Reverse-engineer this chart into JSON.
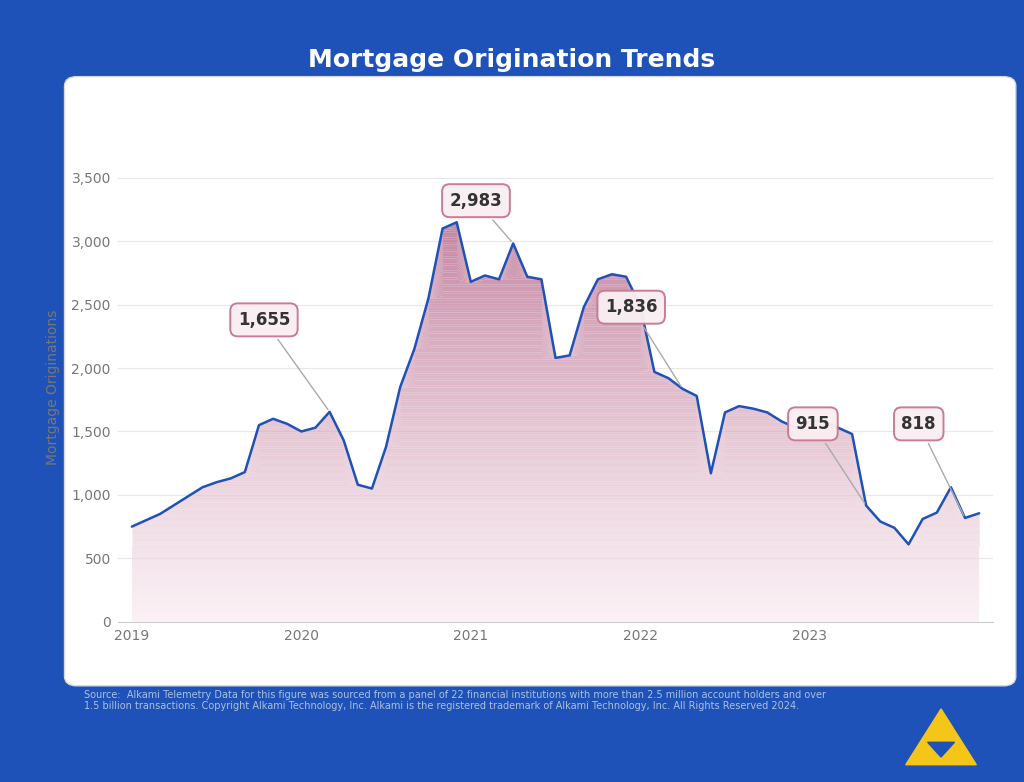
{
  "title": "Mortgage Origination Trends",
  "ylabel": "Mortgage Originations",
  "bg_color": "#1e52b8",
  "panel_facecolor": "#ffffff",
  "panel_edgecolor": "#d8d8d8",
  "line_color": "#1e52b8",
  "ann_face": "#f9eef2",
  "ann_edge": "#c87890",
  "ann_text": "#333333",
  "grid_color": "#e8e8e8",
  "tick_color": "#777777",
  "source_text": "Source:  Alkami Telemetry Data for this figure was sourced from a panel of 22 financial institutions with more than 2.5 million account holders and over\n1.5 billion transactions. Copyright Alkami Technology, Inc. Alkami is the registered trademark of Alkami Technology, Inc. All Rights Reserved 2024.",
  "title_color": "#ffffff",
  "source_color": "#aac0dd",
  "yticks": [
    0,
    500,
    1000,
    1500,
    2000,
    2500,
    3000,
    3500
  ],
  "ylim": [
    0,
    3700
  ],
  "xlim": [
    -1,
    61
  ],
  "year_ticks": [
    0,
    12,
    24,
    36,
    48
  ],
  "year_labels": [
    "2019",
    "2020",
    "2021",
    "2022",
    "2023"
  ],
  "annotations": [
    {
      "label": "1,655",
      "xi": 14,
      "yv": 1655,
      "bx": 7.5,
      "by": 2380
    },
    {
      "label": "2,983",
      "xi": 27,
      "yv": 2983,
      "bx": 22.5,
      "by": 3320
    },
    {
      "label": "1,836",
      "xi": 39,
      "yv": 1836,
      "bx": 33.5,
      "by": 2480
    },
    {
      "label": "915",
      "xi": 52,
      "yv": 915,
      "bx": 47.0,
      "by": 1560
    },
    {
      "label": "818",
      "xi": 59,
      "yv": 818,
      "bx": 54.5,
      "by": 1560
    }
  ],
  "y_data": [
    750,
    800,
    850,
    920,
    990,
    1060,
    1100,
    1130,
    1180,
    1550,
    1600,
    1560,
    1500,
    1530,
    1655,
    1430,
    1080,
    1050,
    1380,
    1850,
    2150,
    2550,
    3100,
    3150,
    2680,
    2730,
    2700,
    2983,
    2720,
    2700,
    2080,
    2100,
    2480,
    2700,
    2740,
    2720,
    2490,
    1970,
    1920,
    1836,
    1780,
    1170,
    1650,
    1700,
    1680,
    1650,
    1580,
    1530,
    1580,
    1580,
    1530,
    1480,
    915,
    790,
    740,
    610,
    810,
    860,
    1060,
    818,
    855
  ]
}
